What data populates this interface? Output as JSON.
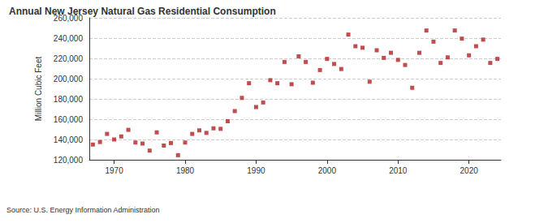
{
  "chart_data": {
    "type": "scatter",
    "title": "Annual New Jersey Natural Gas Residential Consumption",
    "source": "Source: U.S. Energy Information Administration",
    "y_label": "Million Cubic Feet",
    "x": [
      1967,
      1968,
      1969,
      1970,
      1971,
      1972,
      1973,
      1974,
      1975,
      1976,
      1977,
      1978,
      1979,
      1980,
      1981,
      1982,
      1983,
      1984,
      1985,
      1986,
      1987,
      1988,
      1989,
      1990,
      1991,
      1992,
      1993,
      1994,
      1995,
      1996,
      1997,
      1998,
      1999,
      2000,
      2001,
      2002,
      2003,
      2004,
      2005,
      2006,
      2007,
      2008,
      2009,
      2010,
      2011,
      2012,
      2013,
      2014,
      2015,
      2016,
      2017,
      2018,
      2019,
      2020,
      2021,
      2022,
      2023,
      2024
    ],
    "values": [
      135000,
      137500,
      145500,
      140000,
      143000,
      149500,
      137000,
      136000,
      129000,
      147000,
      134000,
      136500,
      124500,
      137000,
      145500,
      149000,
      146500,
      151000,
      150500,
      158000,
      168000,
      181000,
      195500,
      172000,
      176500,
      198500,
      195500,
      216500,
      194500,
      222000,
      216500,
      196000,
      208500,
      219500,
      214500,
      209500,
      243500,
      232000,
      230500,
      197000,
      228000,
      220500,
      225500,
      218500,
      213500,
      191000,
      225500,
      247500,
      236500,
      215500,
      221000,
      247500,
      239500,
      223000,
      232000,
      238500,
      215500,
      219500
    ],
    "color": "#b22222",
    "marker": "square",
    "xlim": [
      1966.5,
      2024.5
    ],
    "xticks": [
      1970,
      1980,
      1990,
      2000,
      2010,
      2020
    ],
    "ylim": [
      120000,
      260000
    ],
    "yticks": [
      {
        "value": 120000,
        "label": "120,000"
      },
      {
        "value": 140000,
        "label": "140,000"
      },
      {
        "value": 160000,
        "label": "160,000"
      },
      {
        "value": 180000,
        "label": "180,000"
      },
      {
        "value": 200000,
        "label": "200,000"
      },
      {
        "value": 220000,
        "label": "220,000"
      },
      {
        "value": 240000,
        "label": "240,000"
      },
      {
        "value": 260000,
        "label": "260,000"
      }
    ],
    "grid": true
  }
}
